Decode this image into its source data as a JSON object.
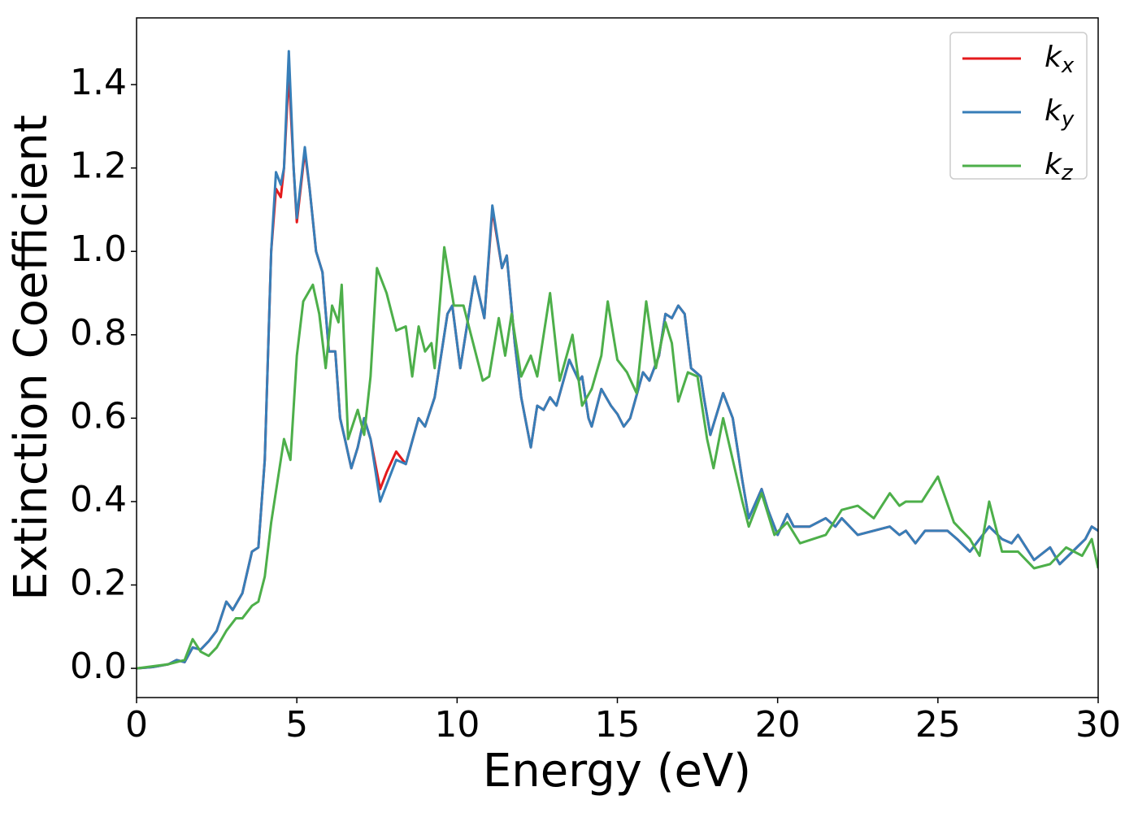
{
  "chart_data": {
    "type": "line",
    "xlabel": "Energy (eV)",
    "ylabel": "Extinction Coefficient",
    "xlim": [
      0,
      30
    ],
    "xticks": [
      0,
      5,
      10,
      15,
      20,
      25,
      30
    ],
    "ylim": [
      -0.07,
      1.56
    ],
    "yticks": [
      {
        "value": 0,
        "label": "0.0"
      },
      0.2,
      0.4,
      0.6,
      0.8,
      {
        "value": 1,
        "label": "1.0"
      },
      1.2,
      1.4
    ],
    "legend": "upper right",
    "series": [
      {
        "name": "kx",
        "color": "#e41a1c",
        "x": [
          0,
          0.5,
          1,
          1.25,
          1.5,
          1.75,
          2,
          2.25,
          2.5,
          2.8,
          3,
          3.3,
          3.6,
          3.8,
          4,
          4.2,
          4.35,
          4.5,
          4.6,
          4.75,
          4.9,
          5,
          5.25,
          5.4,
          5.6,
          5.8,
          6,
          6.2,
          6.35,
          6.5,
          6.7,
          6.9,
          7.1,
          7.3,
          7.6,
          7.8,
          8.1,
          8.4,
          8.8,
          9,
          9.3,
          9.7,
          9.85,
          10.1,
          10.55,
          10.85,
          11.1,
          11.4,
          11.55,
          11.8,
          12,
          12.3,
          12.5,
          12.7,
          12.9,
          13.1,
          13.5,
          13.8,
          13.9,
          14.1,
          14.2,
          14.5,
          14.8,
          15,
          15.2,
          15.4,
          15.8,
          16,
          16.3,
          16.5,
          16.7,
          16.9,
          17.1,
          17.3,
          17.6,
          17.7,
          17.9,
          18.3,
          18.6,
          18.9,
          19.1,
          19.5,
          19.7,
          20,
          20.3,
          20.5,
          21,
          21.5,
          21.8,
          22,
          22.5,
          23,
          23.5,
          23.8,
          24,
          24.3,
          24.6,
          25,
          25.3,
          25.6,
          26,
          26.3,
          26.6,
          27,
          27.3,
          27.5,
          28,
          28.5,
          28.8,
          29.2,
          29.6,
          29.8,
          30
        ],
        "values": [
          0,
          0.003,
          0.01,
          0.02,
          0.015,
          0.05,
          0.045,
          0.065,
          0.09,
          0.16,
          0.14,
          0.18,
          0.28,
          0.29,
          0.5,
          1.0,
          1.15,
          1.13,
          1.2,
          1.43,
          1.2,
          1.07,
          1.24,
          1.15,
          1.0,
          0.95,
          0.76,
          0.76,
          0.6,
          0.55,
          0.48,
          0.53,
          0.6,
          0.55,
          0.43,
          0.47,
          0.52,
          0.49,
          0.6,
          0.58,
          0.65,
          0.85,
          0.87,
          0.72,
          0.94,
          0.84,
          1.1,
          0.96,
          0.99,
          0.78,
          0.65,
          0.53,
          0.63,
          0.62,
          0.65,
          0.63,
          0.74,
          0.69,
          0.7,
          0.6,
          0.58,
          0.67,
          0.63,
          0.61,
          0.58,
          0.6,
          0.71,
          0.69,
          0.75,
          0.85,
          0.84,
          0.87,
          0.85,
          0.72,
          0.7,
          0.65,
          0.56,
          0.66,
          0.6,
          0.45,
          0.36,
          0.43,
          0.38,
          0.32,
          0.37,
          0.34,
          0.34,
          0.36,
          0.34,
          0.36,
          0.32,
          0.33,
          0.34,
          0.32,
          0.33,
          0.3,
          0.33,
          0.33,
          0.33,
          0.31,
          0.28,
          0.31,
          0.34,
          0.31,
          0.3,
          0.32,
          0.26,
          0.29,
          0.25,
          0.28,
          0.31,
          0.34,
          0.33
        ]
      },
      {
        "name": "ky",
        "color": "#377eb8",
        "x": [
          0,
          0.5,
          1,
          1.25,
          1.5,
          1.75,
          2,
          2.25,
          2.5,
          2.8,
          3,
          3.3,
          3.6,
          3.8,
          4,
          4.2,
          4.35,
          4.5,
          4.6,
          4.75,
          4.9,
          5,
          5.25,
          5.4,
          5.6,
          5.8,
          6,
          6.2,
          6.35,
          6.5,
          6.7,
          6.9,
          7.1,
          7.3,
          7.6,
          7.8,
          8.1,
          8.4,
          8.8,
          9,
          9.3,
          9.7,
          9.85,
          10.1,
          10.55,
          10.85,
          11.1,
          11.4,
          11.55,
          11.8,
          12,
          12.3,
          12.5,
          12.7,
          12.9,
          13.1,
          13.5,
          13.8,
          13.9,
          14.1,
          14.2,
          14.5,
          14.8,
          15,
          15.2,
          15.4,
          15.8,
          16,
          16.3,
          16.5,
          16.7,
          16.9,
          17.1,
          17.3,
          17.6,
          17.7,
          17.9,
          18.3,
          18.6,
          18.9,
          19.1,
          19.5,
          19.7,
          20,
          20.3,
          20.5,
          21,
          21.5,
          21.8,
          22,
          22.5,
          23,
          23.5,
          23.8,
          24,
          24.3,
          24.6,
          25,
          25.3,
          25.6,
          26,
          26.3,
          26.6,
          27,
          27.3,
          27.5,
          28,
          28.5,
          28.8,
          29.2,
          29.6,
          29.8,
          30
        ],
        "values": [
          0,
          0.003,
          0.01,
          0.02,
          0.015,
          0.05,
          0.045,
          0.065,
          0.09,
          0.16,
          0.14,
          0.18,
          0.28,
          0.29,
          0.5,
          1.0,
          1.19,
          1.16,
          1.2,
          1.48,
          1.2,
          1.08,
          1.25,
          1.15,
          1.0,
          0.95,
          0.76,
          0.76,
          0.6,
          0.55,
          0.48,
          0.53,
          0.6,
          0.55,
          0.4,
          0.44,
          0.5,
          0.49,
          0.6,
          0.58,
          0.65,
          0.85,
          0.87,
          0.72,
          0.94,
          0.84,
          1.11,
          0.96,
          0.99,
          0.78,
          0.65,
          0.53,
          0.63,
          0.62,
          0.65,
          0.63,
          0.74,
          0.69,
          0.7,
          0.6,
          0.58,
          0.67,
          0.63,
          0.61,
          0.58,
          0.6,
          0.71,
          0.69,
          0.75,
          0.85,
          0.84,
          0.87,
          0.85,
          0.72,
          0.7,
          0.65,
          0.56,
          0.66,
          0.6,
          0.45,
          0.36,
          0.43,
          0.38,
          0.32,
          0.37,
          0.34,
          0.34,
          0.36,
          0.34,
          0.36,
          0.32,
          0.33,
          0.34,
          0.32,
          0.33,
          0.3,
          0.33,
          0.33,
          0.33,
          0.31,
          0.28,
          0.31,
          0.34,
          0.31,
          0.3,
          0.32,
          0.26,
          0.29,
          0.25,
          0.28,
          0.31,
          0.34,
          0.33
        ]
      },
      {
        "name": "kz",
        "color": "#4daf4a",
        "x": [
          0,
          1,
          1.5,
          1.75,
          2,
          2.25,
          2.5,
          2.8,
          3.1,
          3.3,
          3.6,
          3.8,
          4,
          4.2,
          4.4,
          4.6,
          4.8,
          5,
          5.2,
          5.5,
          5.7,
          5.9,
          6.1,
          6.3,
          6.4,
          6.6,
          6.9,
          7.1,
          7.3,
          7.5,
          7.8,
          8.1,
          8.4,
          8.6,
          8.8,
          9,
          9.2,
          9.3,
          9.6,
          9.9,
          10.2,
          10.5,
          10.8,
          11,
          11.3,
          11.5,
          11.7,
          12,
          12.3,
          12.5,
          12.9,
          13.2,
          13.6,
          13.9,
          14.2,
          14.5,
          14.7,
          15,
          15.3,
          15.6,
          15.9,
          16.2,
          16.5,
          16.7,
          16.9,
          17.2,
          17.5,
          17.8,
          18,
          18.3,
          18.9,
          19.1,
          19.5,
          19.9,
          20.3,
          20.7,
          21.5,
          22,
          22.5,
          23,
          23.5,
          23.8,
          24,
          24.5,
          25,
          25.5,
          26,
          26.3,
          26.6,
          27,
          27.5,
          28,
          28.5,
          29,
          29.5,
          29.8,
          30
        ],
        "values": [
          0,
          0.01,
          0.02,
          0.07,
          0.04,
          0.03,
          0.05,
          0.09,
          0.12,
          0.12,
          0.15,
          0.16,
          0.22,
          0.35,
          0.45,
          0.55,
          0.5,
          0.75,
          0.88,
          0.92,
          0.85,
          0.72,
          0.87,
          0.83,
          0.92,
          0.55,
          0.62,
          0.56,
          0.7,
          0.96,
          0.9,
          0.81,
          0.82,
          0.7,
          0.82,
          0.76,
          0.78,
          0.72,
          1.01,
          0.87,
          0.87,
          0.78,
          0.69,
          0.7,
          0.84,
          0.75,
          0.85,
          0.7,
          0.75,
          0.7,
          0.9,
          0.69,
          0.8,
          0.63,
          0.67,
          0.75,
          0.88,
          0.74,
          0.71,
          0.66,
          0.88,
          0.72,
          0.83,
          0.78,
          0.64,
          0.71,
          0.7,
          0.55,
          0.48,
          0.6,
          0.4,
          0.34,
          0.42,
          0.32,
          0.35,
          0.3,
          0.32,
          0.38,
          0.39,
          0.36,
          0.42,
          0.39,
          0.4,
          0.4,
          0.46,
          0.35,
          0.31,
          0.27,
          0.4,
          0.28,
          0.28,
          0.24,
          0.25,
          0.29,
          0.27,
          0.31,
          0.24
        ]
      }
    ]
  }
}
